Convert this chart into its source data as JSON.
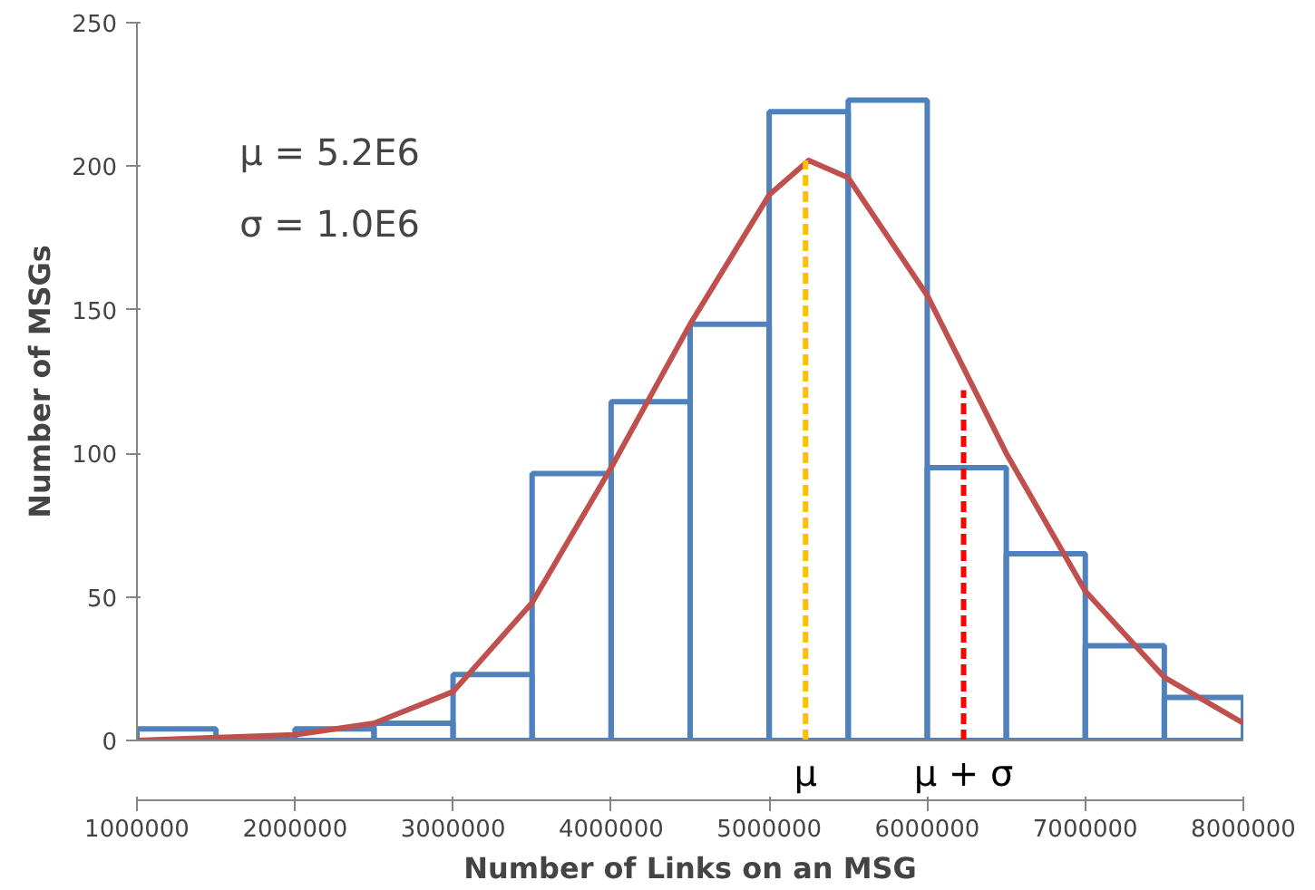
{
  "chart_data": {
    "type": "histogram",
    "xlabel": "Number of Links on an MSG",
    "ylabel": "Number of MSGs",
    "bins": [
      1000000,
      1500000,
      2000000,
      2500000,
      3000000,
      3500000,
      4000000,
      4500000,
      5000000,
      5500000,
      6000000,
      6500000,
      7000000,
      7500000,
      8000000
    ],
    "values": [
      4,
      0,
      4,
      6,
      23,
      93,
      118,
      145,
      219,
      223,
      95,
      65,
      33,
      15
    ],
    "color": "#4f81bd",
    "series": [
      {
        "type": "line",
        "color": "#c0504d",
        "x": [
          1000000,
          1500000,
          2000000,
          2500000,
          3000000,
          3500000,
          4000000,
          4500000,
          5000000,
          5250000,
          5500000,
          6000000,
          6500000,
          7000000,
          7500000,
          8000000
        ],
        "values": [
          0,
          1,
          2,
          6,
          17,
          48,
          95,
          145,
          190,
          202,
          196,
          155,
          100,
          52,
          22,
          6
        ]
      },
      {
        "type": "line",
        "name": "μ",
        "color": "#ffc000",
        "line_style": "dashed",
        "x": [
          5230000,
          5230000
        ],
        "values": [
          0,
          202
        ]
      },
      {
        "type": "line",
        "name": "μ + σ",
        "color": "#ff0000",
        "line_style": "dashed",
        "x": [
          6230000,
          6230000
        ],
        "values": [
          0,
          122
        ]
      }
    ],
    "annotations": [
      "μ = 5.2E6",
      "σ = 1.0E6"
    ],
    "xlim": [
      1000000,
      8000000
    ],
    "xticks": [
      1000000,
      2000000,
      3000000,
      4000000,
      5000000,
      6000000,
      7000000,
      8000000
    ],
    "ylim": [
      0,
      250
    ],
    "yticks": [
      0,
      50,
      100,
      150,
      200,
      250
    ],
    "grid": false
  }
}
